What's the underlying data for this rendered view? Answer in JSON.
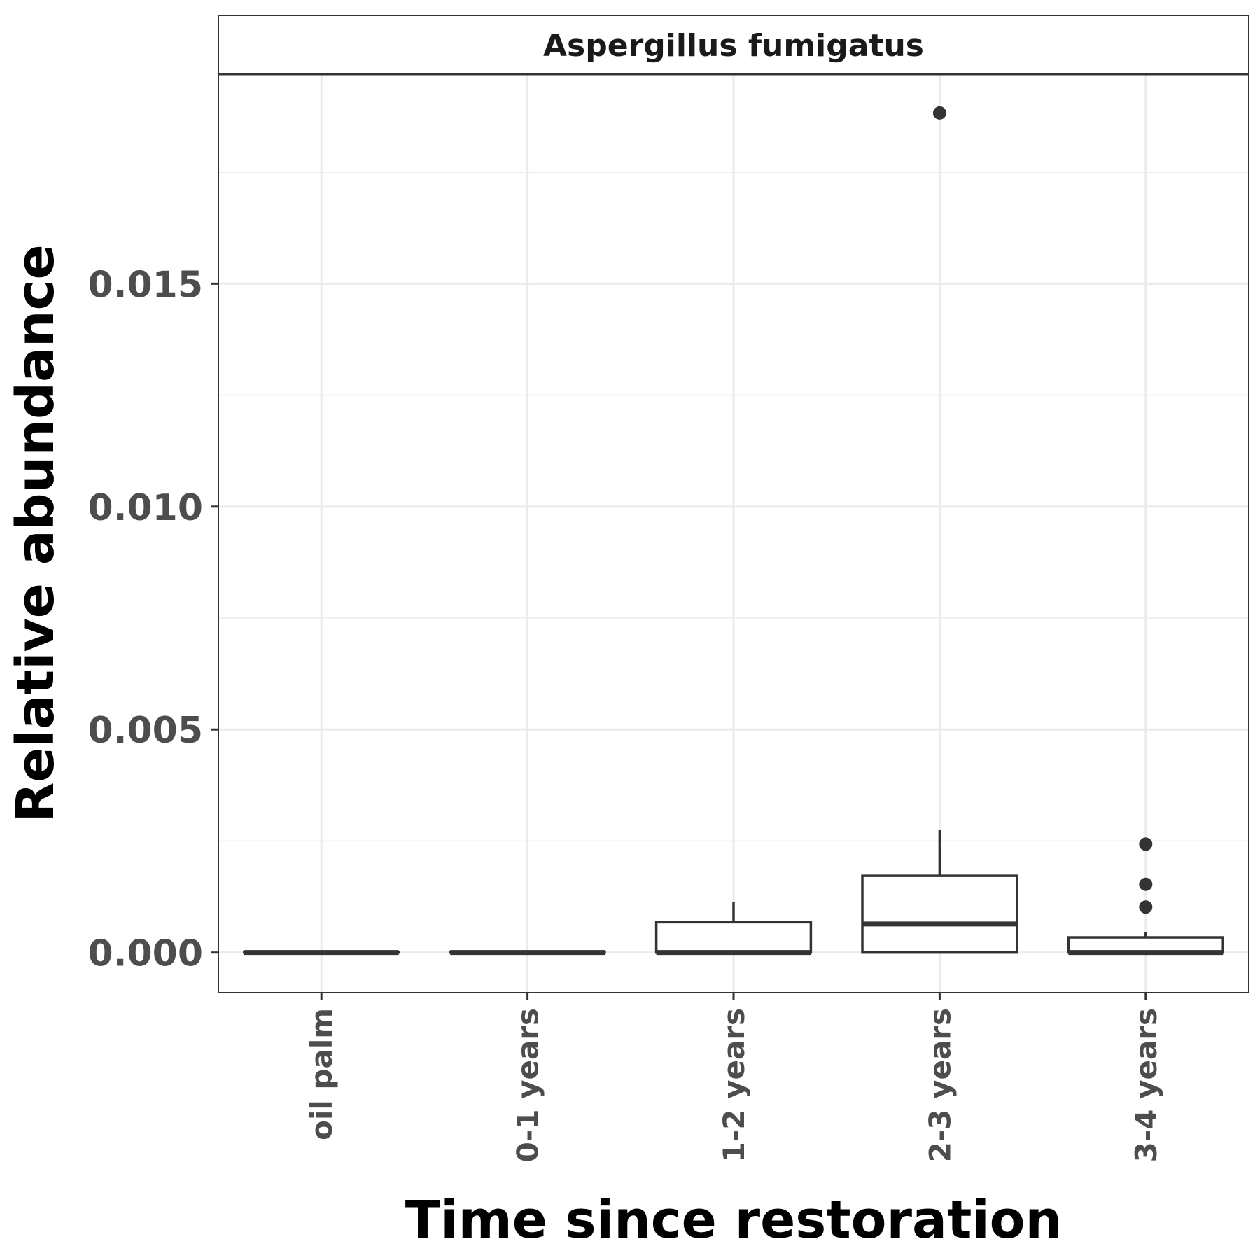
{
  "chart_data": {
    "type": "box",
    "facet_title": "Aspergillus fumigatus",
    "xlabel": "Time since restoration",
    "ylabel": "Relative abundance",
    "categories": [
      "oil palm",
      "0-1 years",
      "1-2 years",
      "2-3 years",
      "3-4 years"
    ],
    "y_ticks": [
      0.0,
      0.005,
      0.01,
      0.015
    ],
    "y_tick_labels": [
      "0.000",
      "0.005",
      "0.010",
      "0.015"
    ],
    "ylim": [
      -0.0009,
      0.0197
    ],
    "grid": true,
    "boxes": [
      {
        "category": "oil palm",
        "whisker_low": 0.0,
        "q1": 0.0,
        "median": 0.0,
        "q3": 0.0,
        "whisker_high": 0.0,
        "outliers": []
      },
      {
        "category": "0-1 years",
        "whisker_low": 0.0,
        "q1": 0.0,
        "median": 0.0,
        "q3": 0.0,
        "whisker_high": 0.0,
        "outliers": []
      },
      {
        "category": "1-2 years",
        "whisker_low": 0.0,
        "q1": 0.0,
        "median": 0.0,
        "q3": 0.00068,
        "whisker_high": 0.00114,
        "outliers": []
      },
      {
        "category": "2-3 years",
        "whisker_low": 0.0,
        "q1": 0.0,
        "median": 0.00064,
        "q3": 0.00172,
        "whisker_high": 0.00275,
        "outliers": [
          0.01883
        ]
      },
      {
        "category": "3-4 years",
        "whisker_low": 0.0,
        "q1": 0.0,
        "median": 0.0,
        "q3": 0.00034,
        "whisker_high": 0.00045,
        "outliers": [
          0.00243,
          0.00153,
          0.00102
        ]
      }
    ],
    "colors": {
      "box_stroke": "#333333",
      "grid": "#ebebeb",
      "panel_border": "#333333",
      "strip_fill": "#ffffff"
    }
  }
}
